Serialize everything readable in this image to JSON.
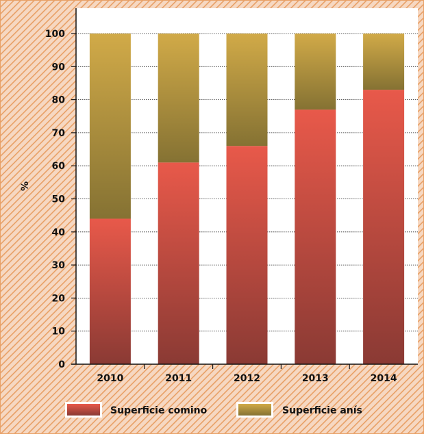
{
  "chart_data": {
    "type": "bar",
    "stacked": true,
    "categories": [
      "2010",
      "2011",
      "2012",
      "2013",
      "2014"
    ],
    "series": [
      {
        "name": "Superficie comino",
        "values": [
          44,
          61,
          66,
          77,
          83
        ]
      },
      {
        "name": "Superficie anís",
        "values": [
          56,
          39,
          34,
          23,
          17
        ]
      }
    ],
    "ylabel": "%",
    "xlabel": "",
    "ylim": [
      0,
      100
    ],
    "yticks": [
      0,
      10,
      20,
      30,
      40,
      50,
      60,
      70,
      80,
      90,
      100
    ],
    "grid": true,
    "legend": "bottom",
    "colors": {
      "comino_top": "#e8594a",
      "comino_bottom": "#8a3a34",
      "anis_top": "#d1aa48",
      "anis_bottom": "#857233",
      "background_stripe": "#e8a066",
      "frame": "#e8a066"
    }
  }
}
